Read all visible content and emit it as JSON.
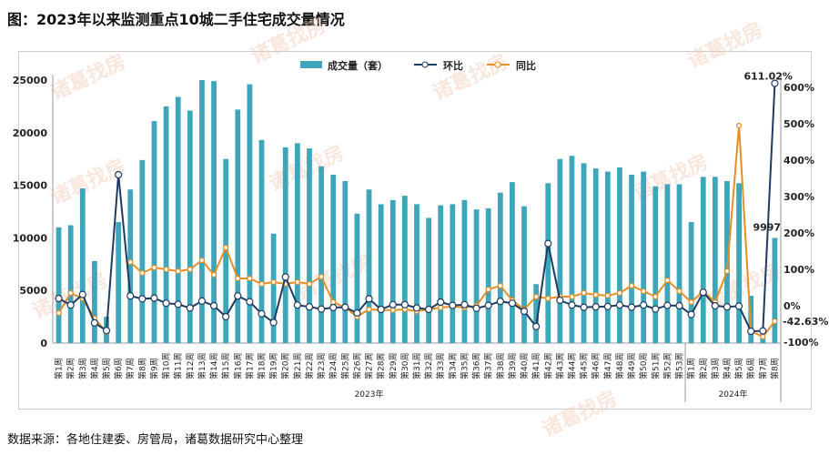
{
  "title": "图：2023年以来监测重点10城二手住宅成交量情况",
  "source": "数据来源：各地住建委、房管局，诸葛数据研究中心整理",
  "watermark": "诸葛找房",
  "colors": {
    "bar": "#3ea6ba",
    "mom": "#1f3b63",
    "yoy": "#e58e26"
  },
  "chart_data": {
    "type": "bar+line",
    "legend": {
      "placement": "top",
      "entries": [
        "成交量（套）",
        "环比",
        "同比"
      ]
    },
    "groups": [
      "2023年",
      "2024年"
    ],
    "categories": [
      "第1周",
      "第2周",
      "第3周",
      "第4周",
      "第5周",
      "第6周",
      "第7周",
      "第8周",
      "第9周",
      "第10周",
      "第11周",
      "第12周",
      "第13周",
      "第14周",
      "第15周",
      "第16周",
      "第17周",
      "第18周",
      "第19周",
      "第20周",
      "第21周",
      "第22周",
      "第23周",
      "第24周",
      "第25周",
      "第26周",
      "第27周",
      "第28周",
      "第29周",
      "第30周",
      "第31周",
      "第32周",
      "第33周",
      "第34周",
      "第35周",
      "第36周",
      "第37周",
      "第38周",
      "第39周",
      "第40周",
      "第41周",
      "第42周",
      "第43周",
      "第44周",
      "第45周",
      "第46周",
      "第47周",
      "第48周",
      "第49周",
      "第50周",
      "第51周",
      "第52周",
      "第53周",
      "第1周",
      "第2周",
      "第3周",
      "第4周",
      "第5周",
      "第6周",
      "第7周",
      "第8周"
    ],
    "group_sizes": [
      53,
      8
    ],
    "y_left": {
      "ticks": [
        "0",
        "5000",
        "10000",
        "15000",
        "20000",
        "25000"
      ],
      "range": [
        0,
        25000
      ]
    },
    "y_right": {
      "ticks": [
        "-100%",
        "0%",
        "100%",
        "200%",
        "300%",
        "400%",
        "500%",
        "600%"
      ],
      "range": [
        -100,
        600
      ]
    },
    "series": [
      {
        "name": "成交量（套）",
        "axis": "left",
        "type": "bar",
        "values": [
          11000,
          11200,
          14700,
          7800,
          2500,
          11500,
          14600,
          17400,
          21100,
          22500,
          23400,
          22100,
          25000,
          24900,
          17500,
          22200,
          24600,
          19300,
          10400,
          18600,
          19000,
          18500,
          16800,
          16000,
          15400,
          12300,
          14600,
          13200,
          13600,
          14000,
          13200,
          11900,
          13100,
          13200,
          13600,
          12700,
          12800,
          14300,
          15300,
          13000,
          5600,
          15200,
          17500,
          17800,
          17100,
          16600,
          16300,
          16700,
          16000,
          16300,
          14900,
          15100,
          15100,
          11500,
          15800,
          15800,
          15400,
          15200,
          4500,
          1406,
          9997
        ]
      },
      {
        "name": "环比",
        "axis": "right",
        "type": "line",
        "values": [
          20,
          2,
          31,
          -47,
          -68,
          360,
          27,
          19,
          21,
          7,
          4,
          -6,
          13,
          0,
          -30,
          27,
          11,
          -22,
          -46,
          79,
          2,
          -3,
          -9,
          -5,
          -4,
          -20,
          19,
          -10,
          3,
          3,
          -6,
          -10,
          10,
          1,
          3,
          -7,
          1,
          12,
          7,
          -15,
          -57,
          171,
          15,
          2,
          -4,
          -3,
          -2,
          2,
          -4,
          2,
          -9,
          1,
          0,
          -24,
          37,
          0,
          -3,
          -1,
          -70,
          -69,
          611.02
        ]
      },
      {
        "name": "同比",
        "axis": "right",
        "type": "line",
        "values": [
          -20,
          35,
          20,
          -35,
          -72,
          null,
          120,
          90,
          105,
          100,
          95,
          100,
          125,
          85,
          160,
          75,
          75,
          60,
          65,
          60,
          65,
          60,
          80,
          10,
          -5,
          -30,
          -10,
          -12,
          -12,
          -10,
          -15,
          -10,
          -5,
          -2,
          -5,
          0,
          45,
          55,
          15,
          -10,
          25,
          20,
          25,
          25,
          35,
          30,
          28,
          35,
          55,
          40,
          25,
          70,
          40,
          10,
          40,
          10,
          95,
          495,
          -70,
          -85,
          -42.63
        ]
      }
    ],
    "data_labels": {
      "last_bar": "9997",
      "last_mom": "611.02%",
      "last_yoy": "-42.63%"
    }
  }
}
